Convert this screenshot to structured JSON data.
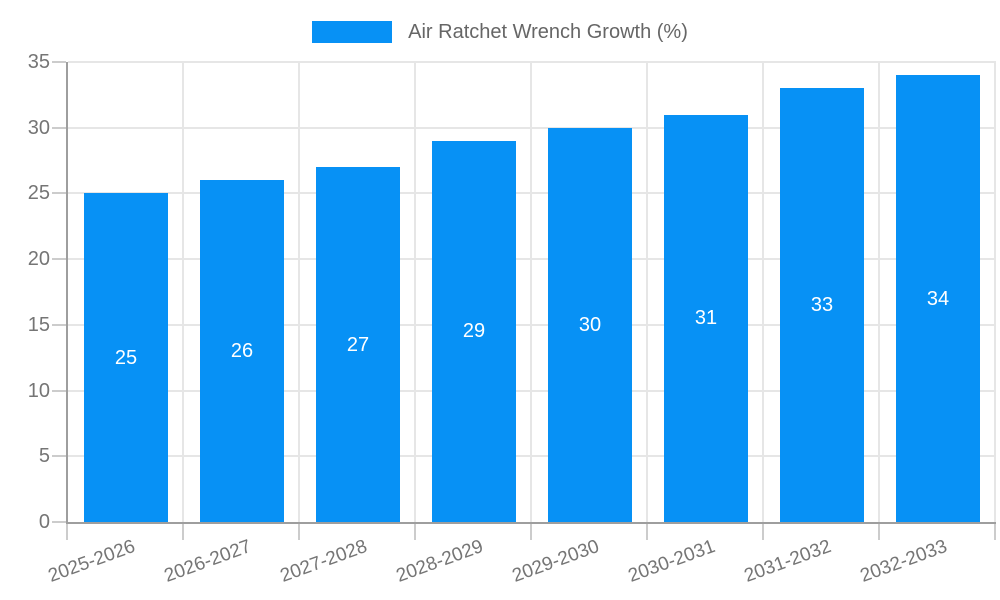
{
  "legend": {
    "label": "Air Ratchet Wrench Growth (%)"
  },
  "colors": {
    "bar": "#0791f5",
    "grid": "#e6e6e6",
    "axis": "#9e9e9e",
    "tick": "#cccccc",
    "axis_label": "#757575",
    "legend_text": "#666666",
    "bar_value_label": "#ffffff",
    "background": "#ffffff"
  },
  "chart_data": {
    "type": "bar",
    "title": "Air Ratchet Wrench Growth (%)",
    "categories": [
      "2025-2026",
      "2026-2027",
      "2027-2028",
      "2028-2029",
      "2029-2030",
      "2030-2031",
      "2031-2032",
      "2032-2033"
    ],
    "values": [
      25,
      26,
      27,
      29,
      30,
      31,
      33,
      34
    ],
    "xlabel": "",
    "ylabel": "",
    "ylim": [
      0,
      35
    ],
    "yticks": [
      0,
      5,
      10,
      15,
      20,
      25,
      30,
      35
    ],
    "grid": true,
    "legend_position": "top-center",
    "bar_labels_inside": true,
    "x_label_rotation_deg": -20
  }
}
